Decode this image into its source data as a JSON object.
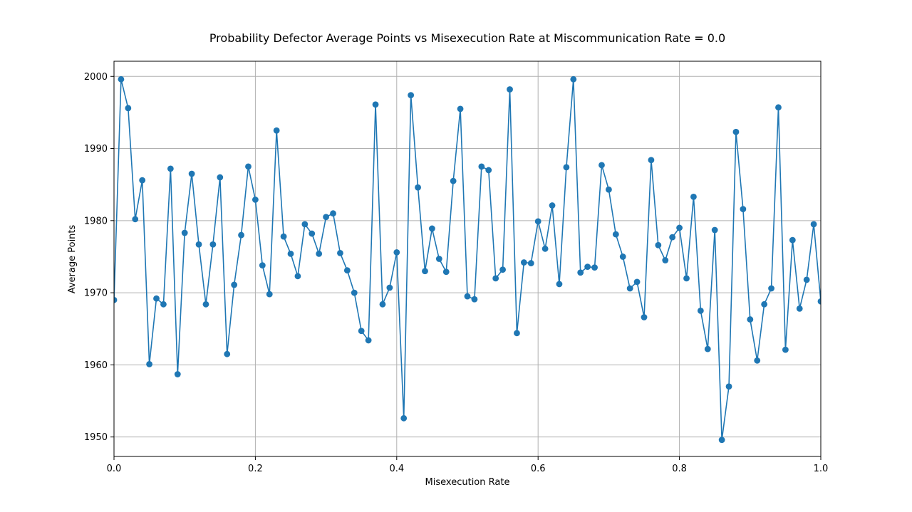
{
  "chart_data": {
    "type": "line",
    "title": "Probability Defector Average Points vs Misexecution Rate at Miscommunication Rate = 0.0",
    "xlabel": "Misexecution Rate",
    "ylabel": "Average Points",
    "xlim": [
      0.0,
      1.0
    ],
    "ylim": [
      1947.3,
      2002.1
    ],
    "xticks": [
      0.0,
      0.2,
      0.4,
      0.6,
      0.8,
      1.0
    ],
    "xtick_labels": [
      "0.0",
      "0.2",
      "0.4",
      "0.6",
      "0.8",
      "1.0"
    ],
    "yticks": [
      1950,
      1960,
      1970,
      1980,
      1990,
      2000
    ],
    "ytick_labels": [
      "1950",
      "1960",
      "1970",
      "1980",
      "1990",
      "2000"
    ],
    "grid": true,
    "marker": "circle",
    "color": "#1f77b4",
    "series": [
      {
        "x": [
          0.0,
          0.01,
          0.02,
          0.03,
          0.04,
          0.05,
          0.06,
          0.07,
          0.08,
          0.09,
          0.1,
          0.11,
          0.12,
          0.13,
          0.14,
          0.15,
          0.16,
          0.17,
          0.18,
          0.19,
          0.2,
          0.21,
          0.22,
          0.23,
          0.24,
          0.25,
          0.26,
          0.27,
          0.28,
          0.29,
          0.3,
          0.31,
          0.32,
          0.33,
          0.34,
          0.35,
          0.36,
          0.37,
          0.38,
          0.39,
          0.4,
          0.41,
          0.42,
          0.43,
          0.44,
          0.45,
          0.46,
          0.47,
          0.48,
          0.49,
          0.5,
          0.51,
          0.52,
          0.53,
          0.54,
          0.55,
          0.56,
          0.57,
          0.58,
          0.59,
          0.6,
          0.61,
          0.62,
          0.63,
          0.64,
          0.65,
          0.66,
          0.67,
          0.68,
          0.69,
          0.7,
          0.71,
          0.72,
          0.73,
          0.74,
          0.75,
          0.76,
          0.77,
          0.78,
          0.79,
          0.8,
          0.81,
          0.82,
          0.83,
          0.84,
          0.85,
          0.86,
          0.87,
          0.88,
          0.89,
          0.9,
          0.91,
          0.92,
          0.93,
          0.94,
          0.95,
          0.96,
          0.97,
          0.98,
          0.99,
          1.0
        ],
        "y": [
          1969.0,
          1999.6,
          1995.6,
          1980.2,
          1985.6,
          1960.1,
          1969.2,
          1968.4,
          1987.2,
          1958.7,
          1978.3,
          1986.5,
          1976.7,
          1968.4,
          1976.7,
          1986.0,
          1961.5,
          1971.1,
          1978.0,
          1987.5,
          1982.9,
          1973.8,
          1969.8,
          1992.5,
          1977.8,
          1975.4,
          1972.3,
          1979.5,
          1978.2,
          1975.4,
          1980.5,
          1981.0,
          1975.5,
          1973.1,
          1970.0,
          1964.7,
          1963.4,
          1996.1,
          1968.4,
          1970.7,
          1975.6,
          1952.6,
          1997.4,
          1984.6,
          1973.0,
          1978.9,
          1974.7,
          1972.9,
          1985.5,
          1995.5,
          1969.5,
          1969.1,
          1987.5,
          1987.0,
          1972.0,
          1973.2,
          1998.2,
          1964.4,
          1974.2,
          1974.1,
          1979.9,
          1976.1,
          1982.1,
          1971.2,
          1987.4,
          1999.6,
          1972.8,
          1973.6,
          1973.5,
          1987.7,
          1984.3,
          1978.1,
          1975.0,
          1970.6,
          1971.5,
          1966.6,
          1988.4,
          1976.6,
          1974.5,
          1977.7,
          1979.0,
          1972.0,
          1983.3,
          1967.5,
          1962.2,
          1978.7,
          1949.6,
          1957.0,
          1992.3,
          1981.6,
          1966.3,
          1960.6,
          1968.4,
          1970.6,
          1995.7,
          1962.1,
          1977.3,
          1967.8,
          1971.8,
          1979.5,
          1968.8
        ]
      }
    ]
  }
}
